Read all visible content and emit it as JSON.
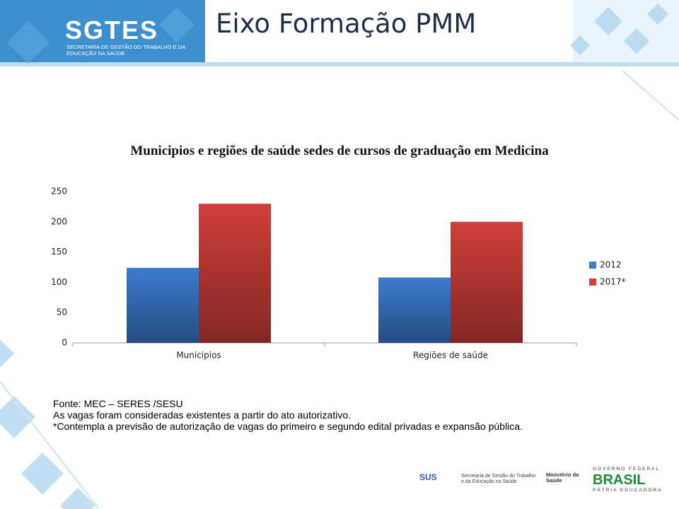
{
  "header": {
    "logo": "SGTES",
    "logo_subtitle": "SECRETARIA DE GESTÃO DO TRABALHO E DA EDUCAÇÃO NA SAÚDE",
    "title": "Eixo Formação PMM"
  },
  "chart_data": {
    "type": "bar",
    "title": "Municipios e regiões de saúde sedes de cursos de graduação em Medicina",
    "categories": [
      "Municipios",
      "Regiões de saúde"
    ],
    "series": [
      {
        "name": "2012",
        "color": "#3c7bd0",
        "values": [
          124,
          108
        ]
      },
      {
        "name": "2017*",
        "color": "#d13f3a",
        "values": [
          230,
          200
        ]
      }
    ],
    "ylim": [
      0,
      250
    ],
    "yticks": [
      0,
      50,
      100,
      150,
      200,
      250
    ],
    "grid": false,
    "legend": "right"
  },
  "notes": [
    "Fonte: MEC – SERES /SESU",
    "As vagas foram consideradas existentes a partir do ato autorizativo.",
    "*Contempla a previsão de autorização de vagas do primeiro e segundo edital privadas e expansão pública."
  ],
  "footer": {
    "sus": "SUS",
    "secretaria": "Secretaria de Gestão do Trabalho e da Educação na Saúde",
    "ministerio": "Ministério da Saúde",
    "governo": "GOVERNO FEDERAL",
    "brasil": "BRASIL",
    "patria": "PÁTRIA EDUCADORA"
  }
}
